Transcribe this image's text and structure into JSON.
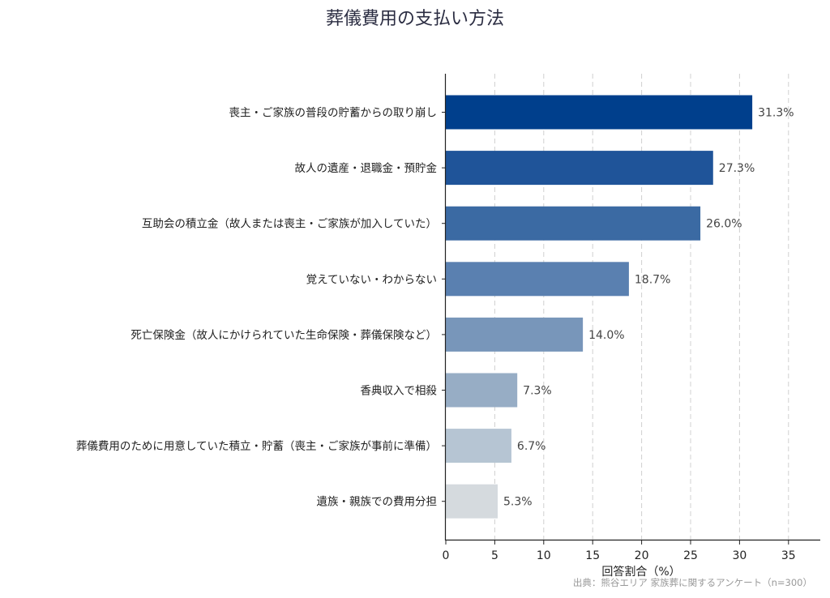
{
  "chart_data": {
    "type": "bar",
    "orientation": "horizontal",
    "title": "葬儀費用の支払い方法",
    "xlabel": "回答割合（%）",
    "ylabel": "",
    "xlim": [
      0,
      38
    ],
    "xticks": [
      0,
      5,
      10,
      15,
      20,
      25,
      30,
      35
    ],
    "grid": "x-dashed",
    "categories": [
      "喪主・ご家族の普段の貯蓄からの取り崩し",
      "故人の遺産・退職金・預貯金",
      "互助会の積立金（故人または喪主・ご家族が加入していた）",
      "覚えていない・わからない",
      "死亡保険金（故人にかけられていた生命保険・葬儀保険など）",
      "香典収入で相殺",
      "葬儀費用のために用意していた積立・貯蓄（喪主・ご家族が事前に準備）",
      "遺族・親族での費用分担"
    ],
    "values": [
      31.3,
      27.3,
      26.0,
      18.7,
      14.0,
      7.3,
      6.7,
      5.3
    ],
    "value_labels": [
      "31.3%",
      "27.3%",
      "26.0%",
      "18.7%",
      "14.0%",
      "7.3%",
      "6.7%",
      "5.3%"
    ],
    "colors": [
      "#003f8c",
      "#1f5499",
      "#3b6aa3",
      "#5a80b0",
      "#7896ba",
      "#97adc5",
      "#b6c5d3",
      "#d5dade"
    ],
    "source": "出典：熊谷エリア 家族葬に関するアンケート（n=300）"
  }
}
